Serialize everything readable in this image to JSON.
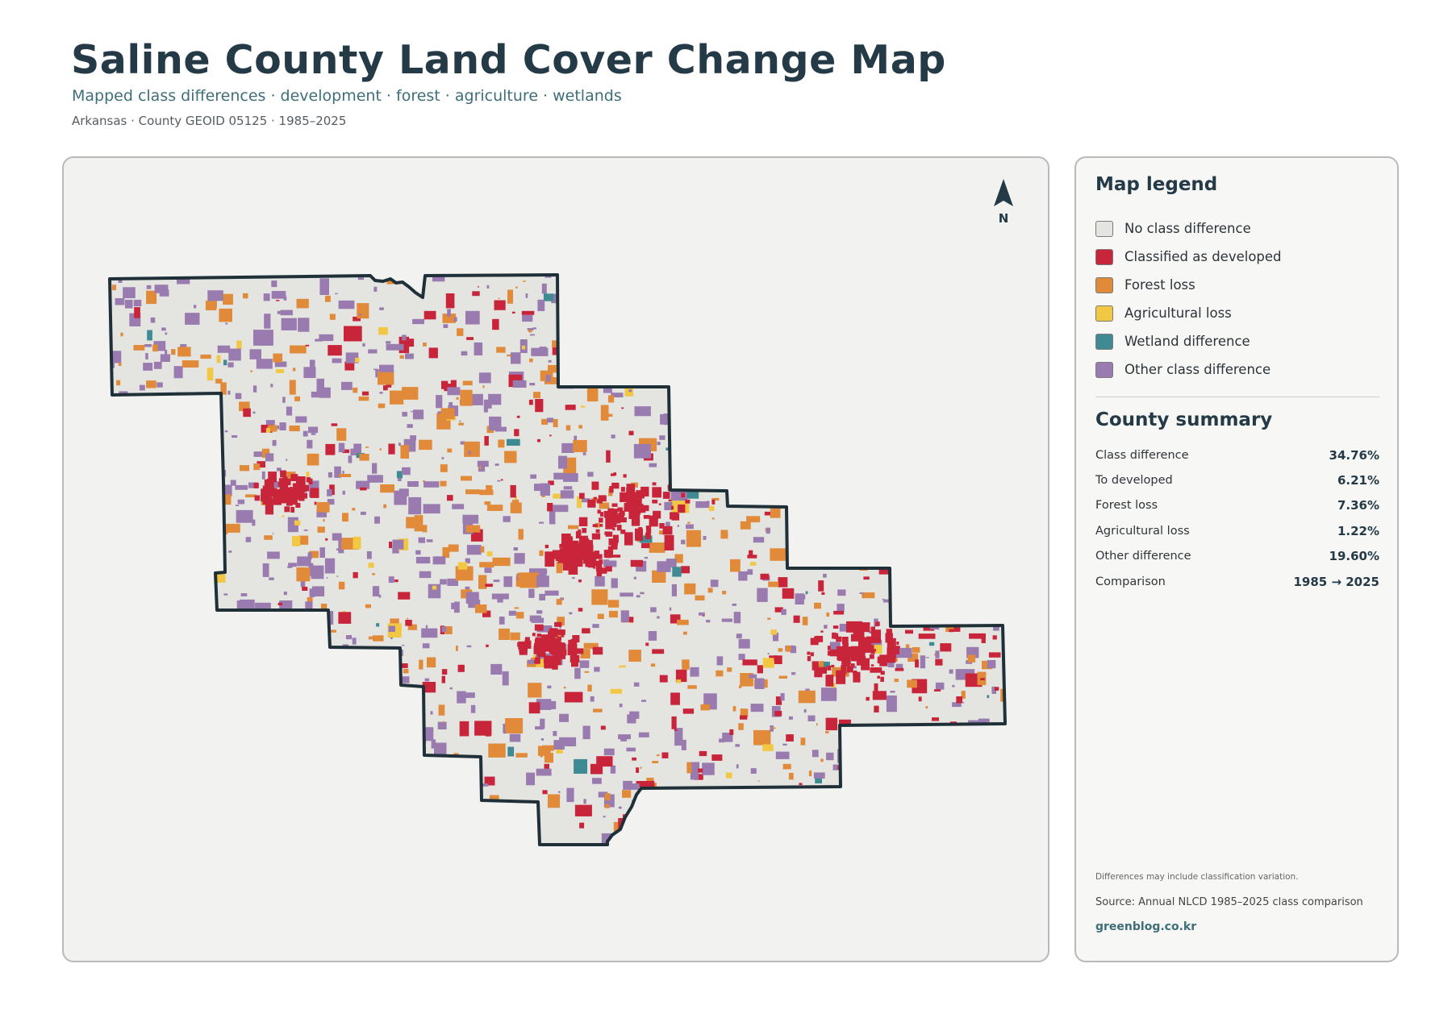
{
  "header": {
    "title": "Saline County Land Cover Change Map",
    "subtitle": "Mapped class differences · development · forest · agriculture · wetlands",
    "meta": "Arkansas · County GEOID 05125 · 1985–2025"
  },
  "map": {
    "north_label": "N",
    "colors": {
      "no_difference": "#e4e4e1",
      "developed": "#c8243a",
      "forest_loss": "#e08a3a",
      "agricultural_loss": "#f2c744",
      "wetland_difference": "#3f8a93",
      "other_difference": "#9a7bb0",
      "boundary": "#1f3038"
    }
  },
  "legend": {
    "title": "Map legend",
    "items": [
      {
        "label": "No class difference",
        "color": "#e4e4e1"
      },
      {
        "label": "Classified as developed",
        "color": "#c8243a"
      },
      {
        "label": "Forest loss",
        "color": "#e08a3a"
      },
      {
        "label": "Agricultural loss",
        "color": "#f2c744"
      },
      {
        "label": "Wetland difference",
        "color": "#3f8a93"
      },
      {
        "label": "Other class difference",
        "color": "#9a7bb0"
      }
    ]
  },
  "summary": {
    "title": "County summary",
    "rows": [
      {
        "label": "Class difference",
        "value": "34.76%"
      },
      {
        "label": "To developed",
        "value": "6.21%"
      },
      {
        "label": "Forest loss",
        "value": "7.36%"
      },
      {
        "label": "Agricultural loss",
        "value": "1.22%"
      },
      {
        "label": "Other difference",
        "value": "19.60%"
      },
      {
        "label": "Comparison",
        "value": "1985 → 2025"
      }
    ]
  },
  "footer": {
    "note": "Differences may include classification variation.",
    "source": "Source: Annual NLCD 1985–2025 class comparison",
    "credit": "greenblog.co.kr"
  }
}
